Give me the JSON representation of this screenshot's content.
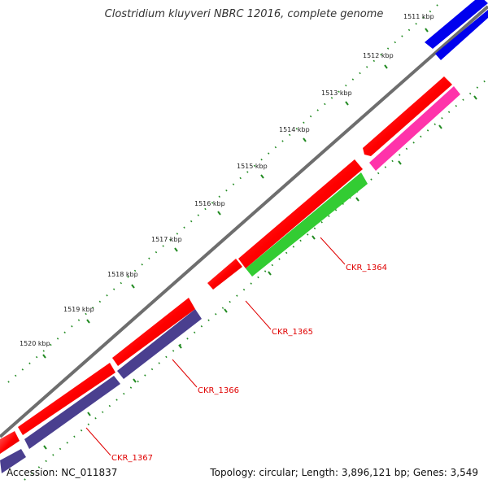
{
  "title": "Clostridium kluyveri NBRC 12016, complete genome",
  "footer": {
    "accession": "Accession: NC_011837",
    "summary": "Topology: circular; Length: 3,896,121 bp; Genes: 3,549"
  },
  "ticks": [
    "1511 kbp",
    "1512 kbp",
    "1513 kbp",
    "1514 kbp",
    "1515 kbp",
    "1516 kbp",
    "1517 kbp",
    "1518 kbp",
    "1519 kbp",
    "1520 kbp"
  ],
  "gene_labels": [
    "CKR_1364",
    "CKR_1365",
    "CKR_1366",
    "CKR_1367"
  ],
  "colors": {
    "backbone": "#7a7a7a",
    "cds": "#ff0000",
    "blue_track": "#0000ee",
    "magenta_track": "#ff33aa",
    "green_track": "#33cc33",
    "purple_track": "#4a3f8f",
    "tick_dots": "#228b22",
    "label_line": "#e00000"
  }
}
